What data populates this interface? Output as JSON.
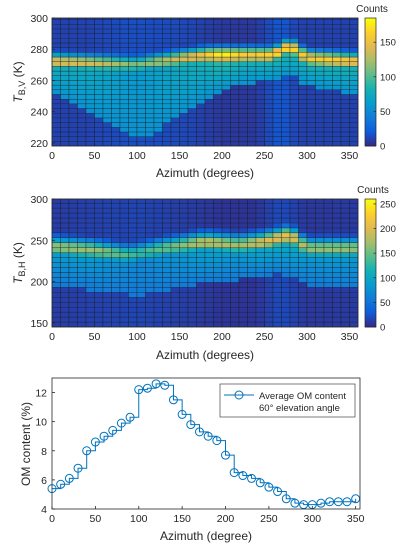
{
  "chart_data": [
    {
      "type": "heatmap",
      "ylabel_main": "T",
      "ylabel_sub": "B,V",
      "ylabel_unit": " (K)",
      "xlabel": "Azimuth (degrees)",
      "xlim": [
        0,
        360
      ],
      "ylim": [
        218,
        300
      ],
      "x_bin_width": 10,
      "y_bin_width": 3,
      "xticks": [
        0,
        50,
        100,
        150,
        200,
        250,
        300,
        350
      ],
      "yticks": [
        220,
        240,
        260,
        280,
        300
      ],
      "colorbar": {
        "label": "Counts",
        "min": 0,
        "max": 185,
        "ticks": [
          0,
          50,
          100,
          150
        ]
      },
      "model": {
        "base": [
          [
            0,
            10
          ],
          [
            40,
            10
          ],
          [
            60,
            12
          ],
          [
            80,
            14
          ],
          [
            100,
            15
          ],
          [
            130,
            14
          ],
          [
            160,
            12
          ],
          [
            200,
            6
          ],
          [
            240,
            6
          ],
          [
            270,
            20
          ],
          [
            290,
            10
          ],
          [
            320,
            10
          ],
          [
            360,
            10
          ]
        ],
        "ridge": [
          [
            0,
            272
          ],
          [
            100,
            270
          ],
          [
            180,
            276
          ],
          [
            230,
            276
          ],
          [
            260,
            276
          ],
          [
            280,
            282
          ],
          [
            300,
            274
          ],
          [
            360,
            272
          ]
        ],
        "ridge_peak": [
          [
            0,
            150
          ],
          [
            50,
            140
          ],
          [
            100,
            110
          ],
          [
            150,
            140
          ],
          [
            180,
            160
          ],
          [
            200,
            185
          ],
          [
            230,
            160
          ],
          [
            250,
            165
          ],
          [
            270,
            175
          ],
          [
            300,
            160
          ],
          [
            330,
            165
          ],
          [
            360,
            160
          ]
        ],
        "ridge_width": 5,
        "lower_bound": [
          [
            0,
            252
          ],
          [
            30,
            245
          ],
          [
            60,
            236
          ],
          [
            90,
            226
          ],
          [
            110,
            224
          ],
          [
            130,
            230
          ],
          [
            160,
            240
          ],
          [
            180,
            248
          ],
          [
            200,
            254
          ],
          [
            230,
            258
          ],
          [
            260,
            260
          ],
          [
            280,
            264
          ],
          [
            300,
            256
          ],
          [
            330,
            254
          ],
          [
            360,
            250
          ]
        ],
        "lower_value": 55
      }
    },
    {
      "type": "heatmap",
      "ylabel_main": "T",
      "ylabel_sub": "B,H",
      "ylabel_unit": " (K)",
      "xlabel": "Azimuth (degrees)",
      "xlim": [
        0,
        360
      ],
      "ylim": [
        145,
        300
      ],
      "x_bin_width": 10,
      "y_bin_width": 6,
      "xticks": [
        0,
        50,
        100,
        150,
        200,
        250,
        300,
        350
      ],
      "yticks": [
        150,
        200,
        250,
        300
      ],
      "colorbar": {
        "label": "Counts",
        "min": 0,
        "max": 260,
        "ticks": [
          0,
          50,
          100,
          150,
          200,
          250
        ]
      },
      "model": {
        "base": [
          [
            0,
            10
          ],
          [
            60,
            14
          ],
          [
            100,
            16
          ],
          [
            150,
            12
          ],
          [
            200,
            6
          ],
          [
            240,
            6
          ],
          [
            270,
            20
          ],
          [
            300,
            8
          ],
          [
            360,
            10
          ]
        ],
        "ridge": [
          [
            0,
            242
          ],
          [
            50,
            238
          ],
          [
            90,
            232
          ],
          [
            130,
            240
          ],
          [
            180,
            248
          ],
          [
            220,
            244
          ],
          [
            250,
            248
          ],
          [
            280,
            256
          ],
          [
            300,
            240
          ],
          [
            360,
            240
          ]
        ],
        "ridge_peak": [
          [
            0,
            170
          ],
          [
            50,
            170
          ],
          [
            100,
            130
          ],
          [
            150,
            160
          ],
          [
            180,
            190
          ],
          [
            220,
            170
          ],
          [
            250,
            200
          ],
          [
            280,
            215
          ],
          [
            300,
            170
          ],
          [
            360,
            170
          ]
        ],
        "ridge_width": 11,
        "lower_bound": [
          [
            0,
            196
          ],
          [
            60,
            188
          ],
          [
            100,
            182
          ],
          [
            130,
            188
          ],
          [
            170,
            196
          ],
          [
            200,
            200
          ],
          [
            240,
            204
          ],
          [
            270,
            210
          ],
          [
            300,
            196
          ],
          [
            360,
            190
          ]
        ],
        "lower_value": 55
      }
    },
    {
      "type": "line",
      "style": "stairs-with-markers",
      "xlabel": "Azimuth (degree)",
      "ylabel": "OM content (%)",
      "xlim": [
        0,
        355
      ],
      "ylim": [
        4,
        13
      ],
      "xticks": [
        0,
        50,
        100,
        150,
        200,
        250,
        300,
        350
      ],
      "yticks": [
        4,
        6,
        8,
        10,
        12
      ],
      "legend": {
        "position": "top-right",
        "lines": [
          "Average OM content",
          "60° elevation angle"
        ]
      },
      "series": [
        {
          "name": "Average OM content",
          "color": "#0072BD",
          "x": [
            0,
            10,
            20,
            30,
            40,
            50,
            60,
            70,
            80,
            90,
            100,
            110,
            120,
            130,
            140,
            150,
            160,
            170,
            180,
            190,
            200,
            210,
            220,
            230,
            240,
            250,
            260,
            270,
            280,
            290,
            300,
            310,
            320,
            330,
            340,
            350
          ],
          "values": [
            5.4,
            5.7,
            6.1,
            6.8,
            8.0,
            8.6,
            9.0,
            9.4,
            9.9,
            10.3,
            12.2,
            12.3,
            12.6,
            12.5,
            11.5,
            10.5,
            9.8,
            9.3,
            9.0,
            8.7,
            7.7,
            6.5,
            6.3,
            6.1,
            5.8,
            5.5,
            5.2,
            4.7,
            4.4,
            4.3,
            4.3,
            4.4,
            4.5,
            4.5,
            4.5,
            4.7
          ]
        }
      ]
    }
  ]
}
